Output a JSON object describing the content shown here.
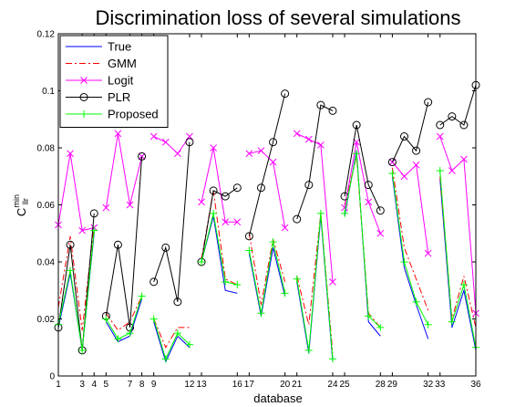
{
  "chart_data": {
    "type": "line",
    "title": "Discrimination loss of several simulations",
    "xlabel": "database",
    "ylabel_main": "C",
    "ylabel_sup": "min",
    "ylabel_sub": "llr",
    "xlim": [
      1,
      36
    ],
    "ylim": [
      0,
      0.12
    ],
    "xticks": [
      1,
      3,
      4,
      5,
      7,
      8,
      9,
      12,
      13,
      16,
      17,
      20,
      21,
      24,
      25,
      28,
      29,
      32,
      33,
      36
    ],
    "xtick_labels": [
      "1",
      "3",
      "4",
      "5",
      "7",
      "8",
      "9",
      "12",
      "13",
      "16",
      "17",
      "20",
      "21",
      "24",
      "25",
      "28",
      "29",
      "32",
      "33",
      "36"
    ],
    "yticks": [
      0,
      0.02,
      0.04,
      0.06,
      0.08,
      0.1,
      0.12
    ],
    "ytick_labels": [
      "0",
      "0.02",
      "0.04",
      "0.06",
      "0.08",
      "0.1",
      "0.12"
    ],
    "grid": false,
    "legend_position": "top-left",
    "series": [
      {
        "name": "True",
        "color": "#0000ff",
        "style": "solid",
        "marker": "none",
        "segments": [
          [
            [
              1,
              0.017
            ],
            [
              2,
              0.036
            ],
            [
              3,
              0.009
            ],
            [
              4,
              0.05
            ]
          ],
          [
            [
              5,
              0.019
            ],
            [
              6,
              0.012
            ],
            [
              7,
              0.014
            ],
            [
              8,
              0.027
            ]
          ],
          [
            [
              9,
              0.019
            ],
            [
              10,
              0.005
            ],
            [
              11,
              0.014
            ],
            [
              12,
              0.01
            ]
          ],
          [
            [
              13,
              0.04
            ],
            [
              14,
              0.056
            ],
            [
              15,
              0.03
            ],
            [
              16,
              0.029
            ]
          ],
          [
            [
              17,
              0.043
            ],
            [
              18,
              0.021
            ],
            [
              19,
              0.045
            ],
            [
              20,
              0.028
            ]
          ],
          [
            [
              21,
              0.033
            ],
            [
              22,
              0.008
            ],
            [
              23,
              0.056
            ],
            [
              24,
              0.005
            ]
          ],
          [
            [
              25,
              0.056
            ],
            [
              26,
              0.079
            ],
            [
              27,
              0.019
            ],
            [
              28,
              0.014
            ]
          ],
          [
            [
              29,
              0.07
            ],
            [
              30,
              0.038
            ],
            [
              31,
              0.025
            ],
            [
              32,
              0.013
            ]
          ],
          [
            [
              33,
              0.069
            ],
            [
              34,
              0.017
            ],
            [
              35,
              0.03
            ],
            [
              36,
              0.009
            ]
          ]
        ]
      },
      {
        "name": "GMM",
        "color": "#ff0000",
        "style": "dashdot",
        "marker": "none",
        "segments": [
          [
            [
              1,
              0.024
            ],
            [
              2,
              0.049
            ],
            [
              3,
              0.016
            ],
            [
              4,
              0.053
            ]
          ],
          [
            [
              5,
              0.022
            ],
            [
              6,
              0.016
            ],
            [
              7,
              0.019
            ],
            [
              8,
              0.028
            ]
          ],
          [
            [
              9,
              0.02
            ],
            [
              10,
              0.01
            ],
            [
              11,
              0.017
            ],
            [
              12,
              0.017
            ]
          ],
          [
            [
              13,
              0.041
            ],
            [
              14,
              0.065
            ],
            [
              15,
              0.034
            ],
            [
              16,
              0.032
            ]
          ],
          [
            [
              17,
              0.05
            ],
            [
              18,
              0.025
            ],
            [
              19,
              0.048
            ],
            [
              20,
              0.033
            ]
          ],
          [
            [
              21,
              0.035
            ],
            [
              22,
              0.018
            ],
            [
              23,
              0.057
            ],
            [
              24,
              0.008
            ]
          ],
          [
            [
              25,
              0.06
            ],
            [
              26,
              0.077
            ],
            [
              27,
              0.022
            ],
            [
              28,
              0.017
            ]
          ],
          [
            [
              29,
              0.073
            ],
            [
              30,
              0.045
            ],
            [
              31,
              0.034
            ],
            [
              32,
              0.023
            ]
          ],
          [
            [
              33,
              0.07
            ],
            [
              34,
              0.02
            ],
            [
              35,
              0.035
            ],
            [
              36,
              0.017
            ]
          ]
        ]
      },
      {
        "name": "Logit",
        "color": "#ff00ff",
        "style": "solid",
        "marker": "x",
        "segments": [
          [
            [
              1,
              0.053
            ],
            [
              2,
              0.078
            ],
            [
              3,
              0.051
            ],
            [
              4,
              0.052
            ]
          ],
          [
            [
              5,
              0.059
            ],
            [
              6,
              0.085
            ],
            [
              7,
              0.06
            ],
            [
              8,
              0.077
            ]
          ],
          [
            [
              9,
              0.084
            ],
            [
              10,
              0.082
            ],
            [
              11,
              0.078
            ],
            [
              12,
              0.084
            ]
          ],
          [
            [
              13,
              0.061
            ],
            [
              14,
              0.08
            ],
            [
              15,
              0.054
            ],
            [
              16,
              0.054
            ]
          ],
          [
            [
              17,
              0.078
            ],
            [
              18,
              0.079
            ],
            [
              19,
              0.075
            ],
            [
              20,
              0.052
            ]
          ],
          [
            [
              21,
              0.085
            ],
            [
              22,
              0.083
            ],
            [
              23,
              0.081
            ],
            [
              24,
              0.033
            ]
          ],
          [
            [
              25,
              0.059
            ],
            [
              26,
              0.082
            ],
            [
              27,
              0.061
            ],
            [
              28,
              0.05
            ]
          ],
          [
            [
              29,
              0.075
            ],
            [
              30,
              0.07
            ],
            [
              31,
              0.074
            ],
            [
              32,
              0.043
            ]
          ],
          [
            [
              33,
              0.084
            ],
            [
              34,
              0.072
            ],
            [
              35,
              0.076
            ],
            [
              36,
              0.022
            ]
          ]
        ]
      },
      {
        "name": "PLR",
        "color": "#000000",
        "style": "solid",
        "marker": "o",
        "segments": [
          [
            [
              1,
              0.017
            ],
            [
              2,
              0.046
            ],
            [
              3,
              0.009
            ],
            [
              4,
              0.057
            ]
          ],
          [
            [
              5,
              0.021
            ],
            [
              6,
              0.046
            ],
            [
              7,
              0.017
            ],
            [
              8,
              0.077
            ]
          ],
          [
            [
              9,
              0.033
            ],
            [
              10,
              0.045
            ],
            [
              11,
              0.026
            ],
            [
              12,
              0.082
            ]
          ],
          [
            [
              13,
              0.04
            ],
            [
              14,
              0.065
            ],
            [
              15,
              0.063
            ],
            [
              16,
              0.066
            ]
          ],
          [
            [
              17,
              0.049
            ],
            [
              18,
              0.066
            ],
            [
              19,
              0.082
            ],
            [
              20,
              0.099
            ]
          ],
          [
            [
              21,
              0.055
            ],
            [
              22,
              0.067
            ],
            [
              23,
              0.095
            ],
            [
              24,
              0.093
            ]
          ],
          [
            [
              25,
              0.063
            ],
            [
              26,
              0.088
            ],
            [
              27,
              0.067
            ],
            [
              28,
              0.058
            ]
          ],
          [
            [
              29,
              0.075
            ],
            [
              30,
              0.084
            ],
            [
              31,
              0.079
            ],
            [
              32,
              0.096
            ]
          ],
          [
            [
              33,
              0.088
            ],
            [
              34,
              0.091
            ],
            [
              35,
              0.088
            ],
            [
              36,
              0.102
            ]
          ]
        ]
      },
      {
        "name": "Proposed",
        "color": "#00ff00",
        "style": "solid",
        "marker": "+",
        "segments": [
          [
            [
              1,
              0.018
            ],
            [
              2,
              0.037
            ],
            [
              3,
              0.009
            ],
            [
              4,
              0.051
            ]
          ],
          [
            [
              5,
              0.02
            ],
            [
              6,
              0.013
            ],
            [
              7,
              0.015
            ],
            [
              8,
              0.028
            ]
          ],
          [
            [
              9,
              0.02
            ],
            [
              10,
              0.006
            ],
            [
              11,
              0.015
            ],
            [
              12,
              0.011
            ]
          ],
          [
            [
              13,
              0.04
            ],
            [
              14,
              0.057
            ],
            [
              15,
              0.033
            ],
            [
              16,
              0.032
            ]
          ],
          [
            [
              17,
              0.044
            ],
            [
              18,
              0.022
            ],
            [
              19,
              0.047
            ],
            [
              20,
              0.029
            ]
          ],
          [
            [
              21,
              0.034
            ],
            [
              22,
              0.009
            ],
            [
              23,
              0.057
            ],
            [
              24,
              0.006
            ]
          ],
          [
            [
              25,
              0.057
            ],
            [
              26,
              0.078
            ],
            [
              27,
              0.021
            ],
            [
              28,
              0.017
            ]
          ],
          [
            [
              29,
              0.071
            ],
            [
              30,
              0.04
            ],
            [
              31,
              0.026
            ],
            [
              32,
              0.018
            ]
          ],
          [
            [
              33,
              0.072
            ],
            [
              34,
              0.019
            ],
            [
              35,
              0.032
            ],
            [
              36,
              0.01
            ]
          ]
        ]
      }
    ]
  }
}
